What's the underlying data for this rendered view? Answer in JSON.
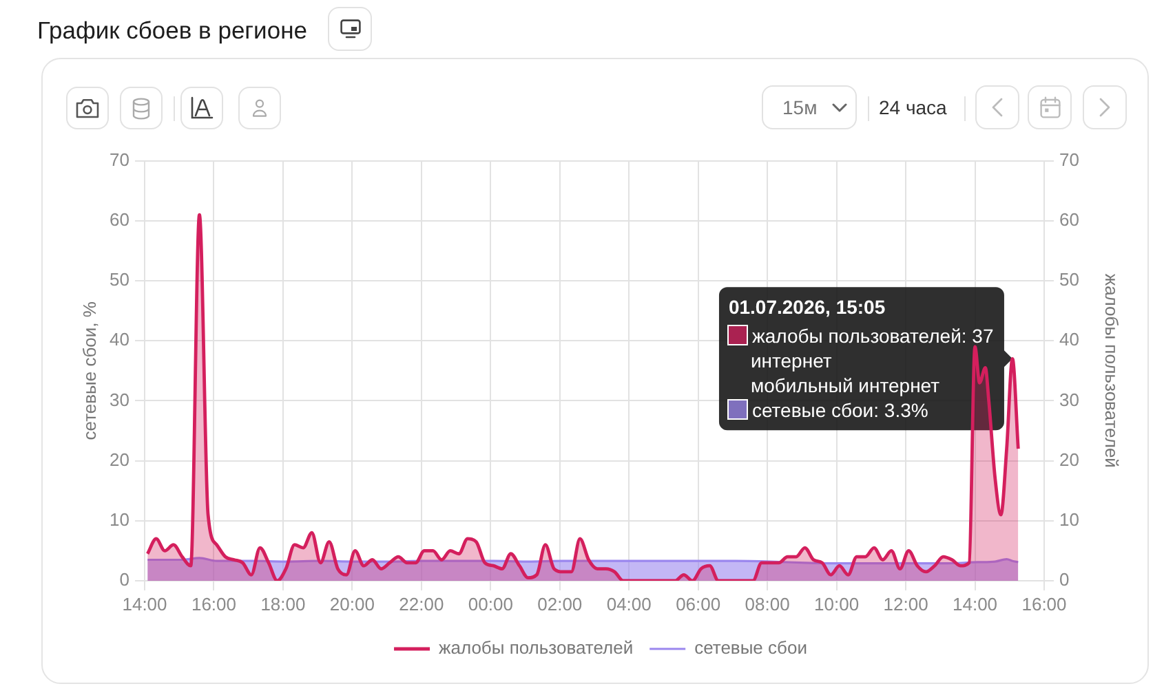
{
  "chart_data": {
    "type": "area",
    "title": "График сбоев в регионе",
    "ylabel": "сетевые сбои, %",
    "y2label": "жалобы пользователей",
    "series": [
      {
        "name": "жалобы пользователей",
        "color": "#d41f5d",
        "axis": "y2",
        "x": [
          "2026-06-30T14:05",
          "2026-06-30T14:20",
          "2026-06-30T14:35",
          "2026-06-30T14:50",
          "2026-06-30T15:05",
          "2026-06-30T15:20",
          "2026-06-30T15:35",
          "2026-06-30T15:50",
          "2026-06-30T16:05",
          "2026-06-30T16:20",
          "2026-06-30T16:35",
          "2026-06-30T16:50",
          "2026-06-30T17:05",
          "2026-06-30T17:20",
          "2026-06-30T17:35",
          "2026-06-30T17:50",
          "2026-06-30T18:05",
          "2026-06-30T18:20",
          "2026-06-30T18:35",
          "2026-06-30T18:50",
          "2026-06-30T19:05",
          "2026-06-30T19:20",
          "2026-06-30T19:35",
          "2026-06-30T19:50",
          "2026-06-30T20:05",
          "2026-06-30T20:20",
          "2026-06-30T20:35",
          "2026-06-30T20:50",
          "2026-06-30T21:05",
          "2026-06-30T21:20",
          "2026-06-30T21:35",
          "2026-06-30T21:50",
          "2026-06-30T22:05",
          "2026-06-30T22:20",
          "2026-06-30T22:35",
          "2026-06-30T22:50",
          "2026-06-30T23:05",
          "2026-06-30T23:20",
          "2026-06-30T23:35",
          "2026-06-30T23:50",
          "2026-07-01T00:05",
          "2026-07-01T00:20",
          "2026-07-01T00:35",
          "2026-07-01T00:50",
          "2026-07-01T01:05",
          "2026-07-01T01:20",
          "2026-07-01T01:35",
          "2026-07-01T01:50",
          "2026-07-01T02:05",
          "2026-07-01T02:20",
          "2026-07-01T02:35",
          "2026-07-01T02:50",
          "2026-07-01T03:05",
          "2026-07-01T03:20",
          "2026-07-01T03:35",
          "2026-07-01T03:50",
          "2026-07-01T04:05",
          "2026-07-01T04:20",
          "2026-07-01T04:35",
          "2026-07-01T04:50",
          "2026-07-01T05:05",
          "2026-07-01T05:20",
          "2026-07-01T05:35",
          "2026-07-01T05:50",
          "2026-07-01T06:05",
          "2026-07-01T06:20",
          "2026-07-01T06:35",
          "2026-07-01T06:50",
          "2026-07-01T07:05",
          "2026-07-01T07:20",
          "2026-07-01T07:35",
          "2026-07-01T07:50",
          "2026-07-01T08:05",
          "2026-07-01T08:20",
          "2026-07-01T08:35",
          "2026-07-01T08:50",
          "2026-07-01T09:05",
          "2026-07-01T09:20",
          "2026-07-01T09:35",
          "2026-07-01T09:50",
          "2026-07-01T10:05",
          "2026-07-01T10:20",
          "2026-07-01T10:35",
          "2026-07-01T10:50",
          "2026-07-01T11:05",
          "2026-07-01T11:20",
          "2026-07-01T11:35",
          "2026-07-01T11:50",
          "2026-07-01T12:05",
          "2026-07-01T12:20",
          "2026-07-01T12:35",
          "2026-07-01T12:50",
          "2026-07-01T13:05",
          "2026-07-01T13:20",
          "2026-07-01T13:35",
          "2026-07-01T13:50",
          "2026-07-01T14:00",
          "2026-07-01T14:08",
          "2026-07-01T14:18",
          "2026-07-01T14:24",
          "2026-07-01T14:35",
          "2026-07-01T14:45",
          "2026-07-01T14:55",
          "2026-07-01T15:05",
          "2026-07-01T15:15"
        ],
        "values": [
          4.5,
          7,
          5,
          6,
          4,
          2.5,
          61,
          11,
          6,
          4,
          3.5,
          3,
          1,
          5.5,
          3,
          0,
          2,
          6,
          5.5,
          8,
          3,
          6.5,
          2,
          1,
          5,
          2.5,
          3.5,
          2,
          3,
          4,
          3,
          3,
          5,
          5,
          3.5,
          5,
          4.5,
          7,
          6.5,
          3,
          2.5,
          2,
          4.5,
          2.5,
          0.5,
          1,
          6,
          2,
          1.5,
          1.5,
          7,
          3.5,
          2,
          2,
          1.5,
          0,
          0,
          0,
          0,
          0,
          0,
          0,
          1,
          0,
          2,
          2.5,
          0,
          0,
          0,
          0,
          0,
          3,
          3,
          3,
          4,
          4,
          5.5,
          3.5,
          3,
          1,
          2.5,
          1,
          4,
          4,
          5.5,
          3.5,
          5,
          2,
          5,
          2.5,
          1.5,
          2.5,
          4,
          3.5,
          2.5,
          3,
          39,
          33,
          35.5,
          30,
          17,
          11,
          22,
          37,
          22
        ]
      },
      {
        "name": "сетевые сбои",
        "color": "#9b87ee",
        "x": [
          "2026-06-30T14:05",
          "2026-06-30T15:05",
          "2026-06-30T15:35",
          "2026-06-30T16:05",
          "2026-06-30T17:05",
          "2026-06-30T18:05",
          "2026-06-30T19:05",
          "2026-06-30T20:05",
          "2026-06-30T21:05",
          "2026-06-30T22:05",
          "2026-06-30T23:05",
          "2026-07-01T00:05",
          "2026-07-01T01:05",
          "2026-07-01T02:05",
          "2026-07-01T03:05",
          "2026-07-01T04:05",
          "2026-07-01T05:05",
          "2026-07-01T06:05",
          "2026-07-01T07:05",
          "2026-07-01T08:05",
          "2026-07-01T09:05",
          "2026-07-01T10:05",
          "2026-07-01T11:05",
          "2026-07-01T12:05",
          "2026-07-01T13:05",
          "2026-07-01T14:05",
          "2026-07-01T14:35",
          "2026-07-01T14:55",
          "2026-07-01T15:05",
          "2026-07-01T15:15"
        ],
        "values": [
          3.5,
          3.5,
          3.8,
          3.3,
          3.3,
          3.2,
          3.3,
          3.2,
          3.2,
          3.3,
          3.3,
          3.3,
          3.2,
          3.3,
          3.3,
          3.3,
          3.3,
          3.3,
          3.3,
          3.2,
          3.0,
          2.9,
          2.9,
          2.9,
          2.9,
          3.1,
          3.2,
          3.6,
          3.3,
          3.1
        ]
      }
    ],
    "xlim": [
      "2026-06-30T14:00",
      "2026-07-01T16:00"
    ],
    "xticks": [
      {
        "value": "2026-06-30T14:00",
        "label": "14:00"
      },
      {
        "value": "2026-06-30T16:00",
        "label": "16:00"
      },
      {
        "value": "2026-06-30T18:00",
        "label": "18:00"
      },
      {
        "value": "2026-06-30T20:00",
        "label": "20:00"
      },
      {
        "value": "2026-06-30T22:00",
        "label": "22:00"
      },
      {
        "value": "2026-07-01T00:00",
        "label": "00:00"
      },
      {
        "value": "2026-07-01T02:00",
        "label": "02:00"
      },
      {
        "value": "2026-07-01T04:00",
        "label": "04:00"
      },
      {
        "value": "2026-07-01T06:00",
        "label": "06:00"
      },
      {
        "value": "2026-07-01T08:00",
        "label": "08:00"
      },
      {
        "value": "2026-07-01T10:00",
        "label": "10:00"
      },
      {
        "value": "2026-07-01T12:00",
        "label": "12:00"
      },
      {
        "value": "2026-07-01T14:00",
        "label": "14:00"
      },
      {
        "value": "2026-07-01T16:00",
        "label": "16:00"
      }
    ],
    "ylim": [
      0,
      70
    ],
    "yticks": [
      0,
      10,
      20,
      30,
      40,
      50,
      60,
      70
    ],
    "y2lim": [
      0,
      70
    ],
    "y2ticks": [
      0,
      10,
      20,
      30,
      40,
      50,
      60,
      70
    ],
    "grid": true,
    "legend": "bottom",
    "marker": "none",
    "annotations": [
      {
        "text": "01.07.2026, 15:05\nжалобы пользователей: 37\nинтернет\nмобильный интернет\nсетевые сбои: 3.3%",
        "x": "2026-07-01T15:05",
        "y": 37
      },
      "15м",
      "24 часа"
    ]
  }
}
